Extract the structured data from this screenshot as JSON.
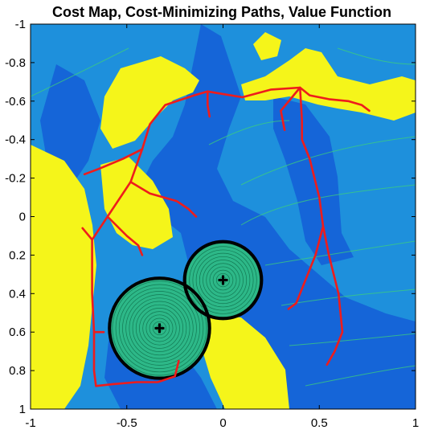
{
  "chart_data": {
    "type": "heatmap",
    "title": "Cost Map, Cost-Minimizing Paths, Value Function",
    "xlim": [
      -1,
      1
    ],
    "ylim": [
      -1,
      1
    ],
    "y_direction": "reversed",
    "x_ticks": [
      -1,
      -0.5,
      0,
      0.5,
      1
    ],
    "x_tick_labels": [
      "-1",
      "-0.5",
      "0",
      "0.5",
      "1"
    ],
    "y_ticks": [
      -1,
      -0.8,
      -0.6,
      -0.4,
      -0.2,
      0,
      0.2,
      0.4,
      0.6,
      0.8,
      1
    ],
    "y_tick_labels": [
      "-1",
      "-0.8",
      "-0.6",
      "-0.4",
      "-0.2",
      "0",
      "0.2",
      "0.4",
      "0.6",
      "0.8",
      "1"
    ],
    "colors": {
      "background_low_cost": "#1e90dc",
      "mid_cost": "#1565d8",
      "high_cost": "#f5f51a",
      "target_region": "#2db888",
      "contour": "#3dd07a",
      "paths": "#ee1c1c",
      "boundary": "#000000"
    },
    "markers": [
      {
        "name": "goal",
        "x": -0.33,
        "y": 0.58
      },
      {
        "name": "goal",
        "x": 0.0,
        "y": 0.33
      }
    ],
    "target_circles": [
      {
        "cx": -0.33,
        "cy": 0.58,
        "r": 0.26
      },
      {
        "cx": 0.0,
        "cy": 0.33,
        "r": 0.2
      }
    ],
    "paths": [
      [
        [
          -0.57,
          0.87
        ],
        [
          -0.45,
          0.86
        ],
        [
          -0.34,
          0.86
        ],
        [
          -0.25,
          0.83
        ],
        [
          -0.23,
          0.75
        ]
      ],
      [
        [
          -0.57,
          0.87
        ],
        [
          -0.66,
          0.88
        ],
        [
          -0.67,
          0.8
        ],
        [
          -0.67,
          0.6
        ],
        [
          -0.68,
          0.4
        ],
        [
          -0.68,
          0.12
        ],
        [
          -0.6,
          0.0
        ],
        [
          -0.48,
          -0.18
        ],
        [
          -0.42,
          -0.35
        ],
        [
          -0.38,
          -0.48
        ],
        [
          -0.3,
          -0.58
        ],
        [
          -0.15,
          -0.63
        ],
        [
          -0.08,
          -0.65
        ]
      ],
      [
        [
          -0.68,
          0.12
        ],
        [
          -0.73,
          0.06
        ]
      ],
      [
        [
          -0.42,
          -0.35
        ],
        [
          -0.52,
          -0.3
        ],
        [
          -0.64,
          -0.25
        ],
        [
          -0.72,
          -0.22
        ]
      ],
      [
        [
          -0.6,
          0.0
        ],
        [
          -0.55,
          0.05
        ],
        [
          -0.5,
          0.1
        ],
        [
          -0.44,
          0.15
        ],
        [
          -0.42,
          0.2
        ]
      ],
      [
        [
          -0.48,
          -0.18
        ],
        [
          -0.38,
          -0.12
        ],
        [
          -0.24,
          -0.08
        ],
        [
          -0.18,
          -0.04
        ],
        [
          -0.14,
          0.0
        ]
      ],
      [
        [
          -0.67,
          0.6
        ],
        [
          -0.62,
          0.6
        ]
      ],
      [
        [
          -0.08,
          -0.65
        ],
        [
          -0.08,
          -0.58
        ],
        [
          -0.07,
          -0.52
        ]
      ],
      [
        [
          -0.08,
          -0.65
        ],
        [
          0.1,
          -0.62
        ],
        [
          0.25,
          -0.66
        ],
        [
          0.4,
          -0.67
        ],
        [
          0.45,
          -0.63
        ],
        [
          0.55,
          -0.61
        ],
        [
          0.65,
          -0.6
        ],
        [
          0.72,
          -0.58
        ],
        [
          0.76,
          -0.55
        ]
      ],
      [
        [
          0.4,
          -0.67
        ],
        [
          0.41,
          -0.5
        ],
        [
          0.41,
          -0.4
        ],
        [
          0.45,
          -0.3
        ],
        [
          0.5,
          -0.1
        ],
        [
          0.52,
          0.05
        ],
        [
          0.48,
          0.2
        ],
        [
          0.42,
          0.35
        ],
        [
          0.38,
          0.45
        ],
        [
          0.34,
          0.48
        ]
      ],
      [
        [
          0.4,
          -0.67
        ],
        [
          0.3,
          -0.55
        ],
        [
          0.32,
          -0.45
        ]
      ],
      [
        [
          0.52,
          0.05
        ],
        [
          0.55,
          0.2
        ],
        [
          0.6,
          0.4
        ],
        [
          0.62,
          0.6
        ],
        [
          0.58,
          0.7
        ],
        [
          0.54,
          0.77
        ]
      ]
    ]
  }
}
